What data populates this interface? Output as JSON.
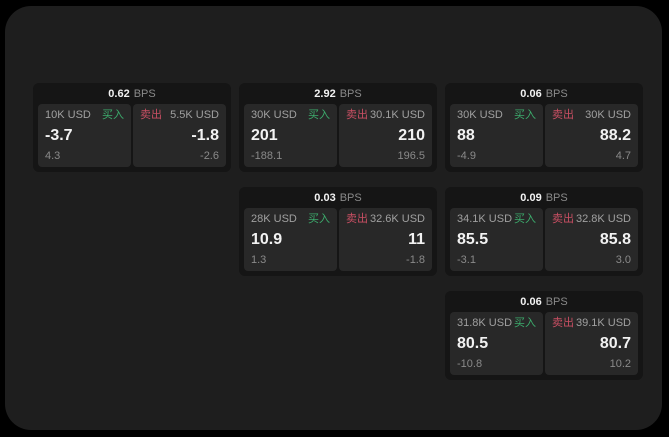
{
  "theme": {
    "window_bg": "#1e1e1e",
    "card_bg": "#151515",
    "panel_bg": "#282828",
    "buy_color": "#3cab6c",
    "sell_color": "#c94f63",
    "text_primary": "#f2f2f2",
    "text_muted": "#a0a0a0",
    "text_dim": "#8a8a8a"
  },
  "labels": {
    "bps": "BPS",
    "buy": "买入",
    "sell": "卖出"
  },
  "cards": [
    {
      "bps": "0.62",
      "buy": {
        "amount": "10K USD",
        "value": "-3.7",
        "sub": "4.3"
      },
      "sell": {
        "amount": "5.5K USD",
        "value": "-1.8",
        "sub": "-2.6"
      }
    },
    {
      "bps": "2.92",
      "buy": {
        "amount": "30K USD",
        "value": "201",
        "sub": "-188.1"
      },
      "sell": {
        "amount": "30.1K USD",
        "value": "210",
        "sub": "196.5"
      }
    },
    {
      "bps": "0.06",
      "buy": {
        "amount": "30K USD",
        "value": "88",
        "sub": "-4.9"
      },
      "sell": {
        "amount": "30K USD",
        "value": "88.2",
        "sub": "4.7"
      }
    },
    {
      "bps": "0.03",
      "buy": {
        "amount": "28K USD",
        "value": "10.9",
        "sub": "1.3"
      },
      "sell": {
        "amount": "32.6K USD",
        "value": "11",
        "sub": "-1.8"
      }
    },
    {
      "bps": "0.09",
      "buy": {
        "amount": "34.1K USD",
        "value": "85.5",
        "sub": "-3.1"
      },
      "sell": {
        "amount": "32.8K USD",
        "value": "85.8",
        "sub": "3.0"
      }
    },
    {
      "bps": "0.06",
      "buy": {
        "amount": "31.8K USD",
        "value": "80.5",
        "sub": "-10.8"
      },
      "sell": {
        "amount": "39.1K USD",
        "value": "80.7",
        "sub": "10.2"
      }
    }
  ]
}
